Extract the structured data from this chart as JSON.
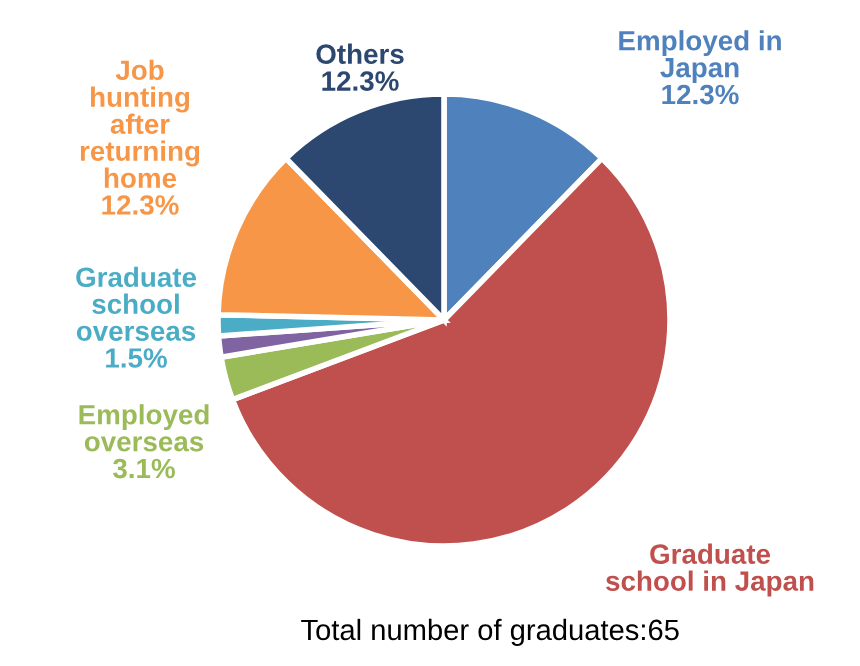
{
  "chart_data": {
    "type": "pie",
    "categories": [
      "Employed in\nJapan",
      "Graduate\nschool in Japan",
      "Employed\noverseas",
      null,
      "Graduate\nschool\noverseas",
      "Job\nhunting\nafter\nreturning\nhome",
      "Others"
    ],
    "values": [
      12.3,
      56.9,
      3.1,
      1.5,
      1.5,
      12.3,
      12.3
    ],
    "colors": [
      "#4f81bd",
      "#c0504d",
      "#9bbb59",
      "#8064a2",
      "#4bacc6",
      "#f79646",
      "#2c4770"
    ],
    "value_labels": [
      "12.3%",
      null,
      "3.1%",
      null,
      "1.5%",
      "12.3%",
      "12.3%"
    ],
    "annotations": [
      "Total number of graduates:65"
    ]
  }
}
